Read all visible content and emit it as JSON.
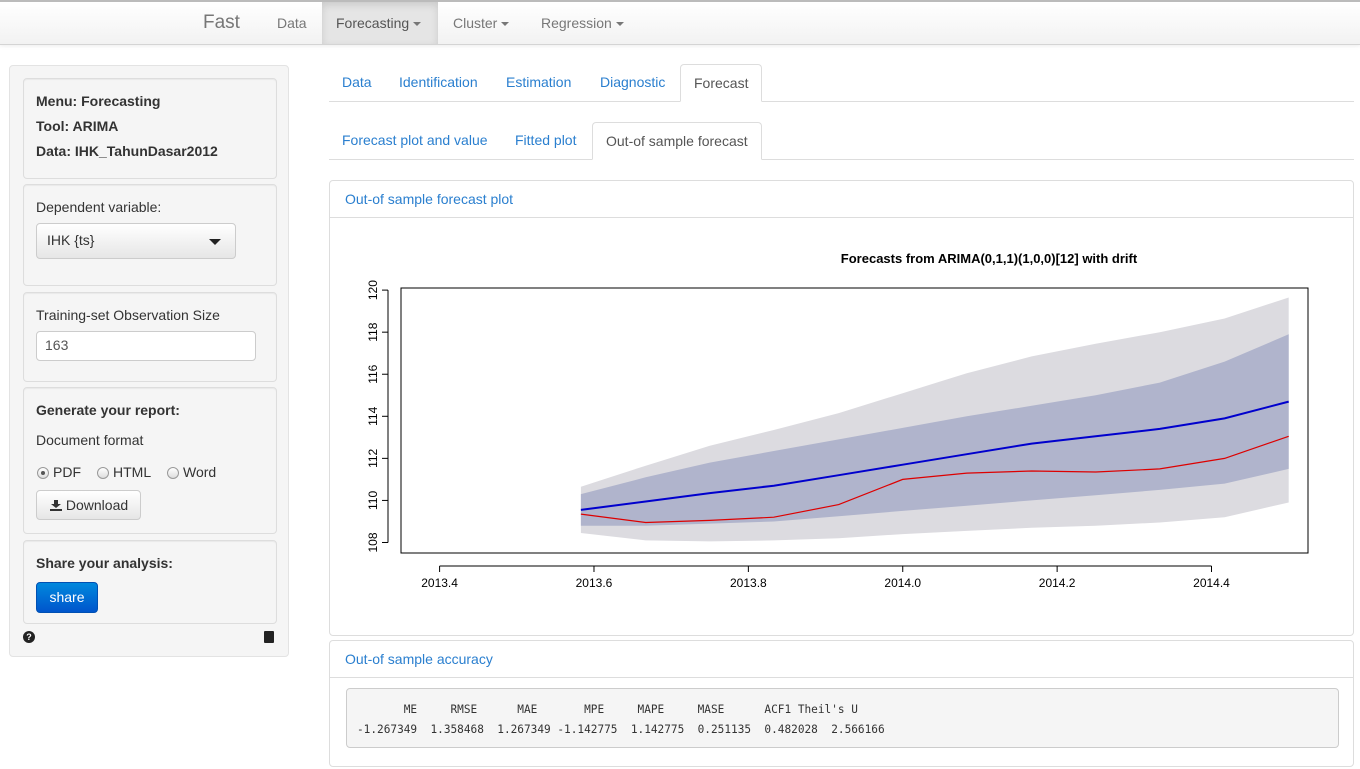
{
  "navbar": {
    "brand": "Fast",
    "items": [
      "Data",
      "Forecasting",
      "Cluster",
      "Regression"
    ]
  },
  "sidebar": {
    "info": {
      "menu": "Menu: Forecasting",
      "tool": "Tool: ARIMA",
      "data": "Data: IHK_TahunDasar2012"
    },
    "dependent_label": "Dependent variable:",
    "dependent_value": "IHK {ts}",
    "training_label": "Training-set Observation Size",
    "training_value": "163",
    "report_title": "Generate your report:",
    "format_label": "Document format",
    "formats": [
      "PDF",
      "HTML",
      "Word"
    ],
    "selected_format": "PDF",
    "download_label": "Download",
    "share_title": "Share your analysis:",
    "share_label": "share"
  },
  "tabs": [
    "Data",
    "Identification",
    "Estimation",
    "Diagnostic",
    "Forecast"
  ],
  "subtabs": [
    "Forecast plot and value",
    "Fitted plot",
    "Out-of sample forecast"
  ],
  "plot_panel_title": "Out-of sample forecast plot",
  "accuracy_panel_title": "Out-of sample accuracy",
  "accuracy": {
    "header": "       ME     RMSE      MAE       MPE     MAPE     MASE      ACF1 Theil's U",
    "row": "-1.267349  1.358468  1.267349 -1.142775  1.142775  0.251135  0.482028  2.566166"
  },
  "colors": {
    "forecast": "#0000cd",
    "actual": "#dd0000",
    "band80": "#b0b4cc",
    "band95": "#dcdbe0",
    "link": "#2a7fcf"
  },
  "chart_data": {
    "type": "line",
    "title": "Forecasts from ARIMA(0,1,1)(1,0,0)[12] with drift",
    "xlim": [
      2013.4,
      2014.5
    ],
    "ylim": [
      108,
      120
    ],
    "xticks": [
      "2013.4",
      "2013.6",
      "2013.8",
      "2014.0",
      "2014.2",
      "2014.4"
    ],
    "yticks": [
      "108",
      "110",
      "112",
      "114",
      "116",
      "118",
      "120"
    ],
    "x": [
      2013.583,
      2013.667,
      2013.75,
      2013.833,
      2013.917,
      2014.0,
      2014.083,
      2014.167,
      2014.25,
      2014.333,
      2014.417,
      2014.5
    ],
    "series": [
      {
        "role": "forecast",
        "values": [
          109.55,
          109.95,
          110.35,
          110.7,
          111.2,
          111.7,
          112.2,
          112.7,
          113.05,
          113.4,
          113.9,
          114.7
        ]
      },
      {
        "role": "actual",
        "values": [
          109.35,
          108.95,
          109.05,
          109.2,
          109.8,
          111.0,
          111.3,
          111.4,
          111.35,
          111.5,
          112.0,
          113.05
        ]
      }
    ],
    "band80": {
      "lower": [
        108.8,
        108.8,
        108.9,
        109.0,
        109.25,
        109.5,
        109.75,
        110.0,
        110.25,
        110.5,
        110.8,
        111.5
      ],
      "upper": [
        110.3,
        111.1,
        111.8,
        112.35,
        112.9,
        113.45,
        114.0,
        114.5,
        115.0,
        115.6,
        116.6,
        117.9
      ]
    },
    "band95": {
      "lower": [
        108.45,
        108.1,
        108.05,
        108.1,
        108.2,
        108.4,
        108.55,
        108.7,
        108.8,
        108.95,
        109.2,
        109.9
      ],
      "upper": [
        110.65,
        111.65,
        112.6,
        113.35,
        114.15,
        115.1,
        116.05,
        116.85,
        117.45,
        118.0,
        118.65,
        119.65
      ]
    }
  }
}
